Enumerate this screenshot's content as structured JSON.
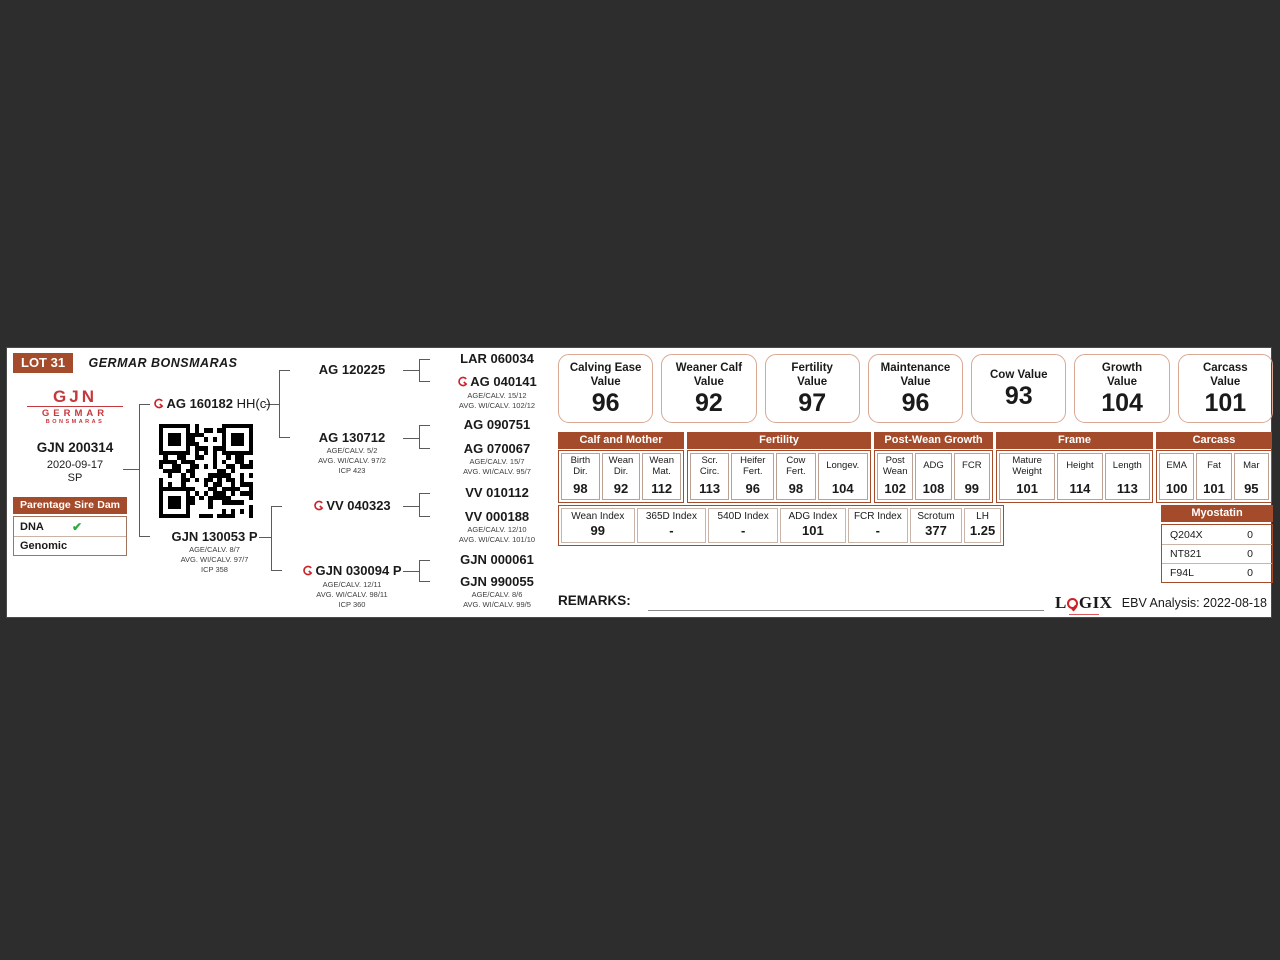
{
  "lot": "LOT 31",
  "farm_name": "GERMAR BONSMARAS",
  "logo": {
    "line1": "GJN",
    "line2": "GERMAR",
    "line3": "BONSMARAS"
  },
  "animal": {
    "id": "GJN 200314",
    "birth_date": "2020-09-17",
    "status": "SP"
  },
  "parentage": {
    "header": [
      "Parentage",
      "Sire",
      "Dam"
    ],
    "rows": [
      {
        "label": "DNA",
        "check": "✔"
      },
      {
        "label": "Genomic",
        "check": ""
      }
    ]
  },
  "pedigree": {
    "sire": {
      "id": "AG 160182",
      "suffix": "HH(c)"
    },
    "dam": {
      "id": "GJN 130053 P",
      "stats": [
        "AGE/CALV. 8/7",
        "AVG. WI/CALV. 97/7",
        "ICP 358"
      ]
    },
    "gen2": [
      {
        "id": "AG 120225"
      },
      {
        "id": "AG 130712",
        "stats": [
          "AGE/CALV. 5/2",
          "AVG. WI/CALV. 97/2",
          "ICP 423"
        ]
      },
      {
        "id": "VV 040323"
      },
      {
        "id": "GJN 030094 P",
        "stats": [
          "AGE/CALV. 12/11",
          "AVG. WI/CALV. 98/11",
          "ICP 360"
        ]
      }
    ],
    "gen3": [
      {
        "id": "LAR 060034"
      },
      {
        "id": "AG 040141",
        "stats": [
          "AGE/CALV. 15/12",
          "AVG. WI/CALV. 102/12"
        ]
      },
      {
        "id": "AG 090751"
      },
      {
        "id": "AG 070067",
        "stats": [
          "AGE/CALV. 15/7",
          "AVG. WI/CALV. 95/7"
        ]
      },
      {
        "id": "VV 010112"
      },
      {
        "id": "VV 000188",
        "stats": [
          "AGE/CALV. 12/10",
          "AVG. WI/CALV. 101/10"
        ]
      },
      {
        "id": "GJN 000061"
      },
      {
        "id": "GJN 990055",
        "stats": [
          "AGE/CALV. 8/6",
          "AVG. WI/CALV. 99/5"
        ]
      }
    ]
  },
  "value_boxes": [
    {
      "title": "Calving Ease\nValue",
      "value": "96"
    },
    {
      "title": "Weaner Calf\nValue",
      "value": "92"
    },
    {
      "title": "Fertility\nValue",
      "value": "97"
    },
    {
      "title": "Maintenance\nValue",
      "value": "96"
    },
    {
      "title": "Cow Value",
      "value": "93"
    },
    {
      "title": "Growth\nValue",
      "value": "104"
    },
    {
      "title": "Carcass\nValue",
      "value": "101"
    }
  ],
  "ebv_table": {
    "groups": [
      {
        "title": "Calf and Mother",
        "cells": [
          {
            "label": "Birth\nDir.",
            "value": "98"
          },
          {
            "label": "Wean\nDir.",
            "value": "92"
          },
          {
            "label": "Wean\nMat.",
            "value": "112"
          }
        ]
      },
      {
        "title": "Fertility",
        "cells": [
          {
            "label": "Scr.\nCirc.",
            "value": "113"
          },
          {
            "label": "Heifer\nFert.",
            "value": "96"
          },
          {
            "label": "Cow\nFert.",
            "value": "98"
          },
          {
            "label": "Longev.",
            "value": "104"
          }
        ]
      },
      {
        "title": "Post-Wean Growth",
        "cells": [
          {
            "label": "Post\nWean",
            "value": "102"
          },
          {
            "label": "ADG",
            "value": "108"
          },
          {
            "label": "FCR",
            "value": "99"
          }
        ]
      },
      {
        "title": "Frame",
        "cells": [
          {
            "label": "Mature\nWeight",
            "value": "101"
          },
          {
            "label": "Height",
            "value": "114"
          },
          {
            "label": "Length",
            "value": "113"
          }
        ]
      },
      {
        "title": "Carcass",
        "cells": [
          {
            "label": "EMA",
            "value": "100"
          },
          {
            "label": "Fat",
            "value": "101"
          },
          {
            "label": "Mar",
            "value": "95"
          }
        ]
      }
    ]
  },
  "index_row": [
    {
      "label": "Wean Index",
      "value": "99"
    },
    {
      "label": "365D Index",
      "value": "-"
    },
    {
      "label": "540D Index",
      "value": "-"
    },
    {
      "label": "ADG Index",
      "value": "101"
    },
    {
      "label": "FCR Index",
      "value": "-"
    },
    {
      "label": "Scrotum",
      "value": "377"
    },
    {
      "label": "LH",
      "value": "1.25"
    }
  ],
  "myostatin": {
    "title": "Myostatin",
    "rows": [
      {
        "label": "Q204X",
        "value": "0"
      },
      {
        "label": "NT821",
        "value": "0"
      },
      {
        "label": "F94L",
        "value": "0"
      }
    ]
  },
  "remarks_label": "REMARKS:",
  "footer": {
    "logix_l": "L",
    "logix_gix": "GIX",
    "ebv_analysis": "EBV Analysis: 2022-08-18"
  },
  "colors": {
    "accent_brown": "#a34b2b",
    "value_box_border": "#d9a996",
    "brand_red": "#cc2127",
    "check_green": "#2fa742",
    "page_background": "#2d2d2d"
  }
}
